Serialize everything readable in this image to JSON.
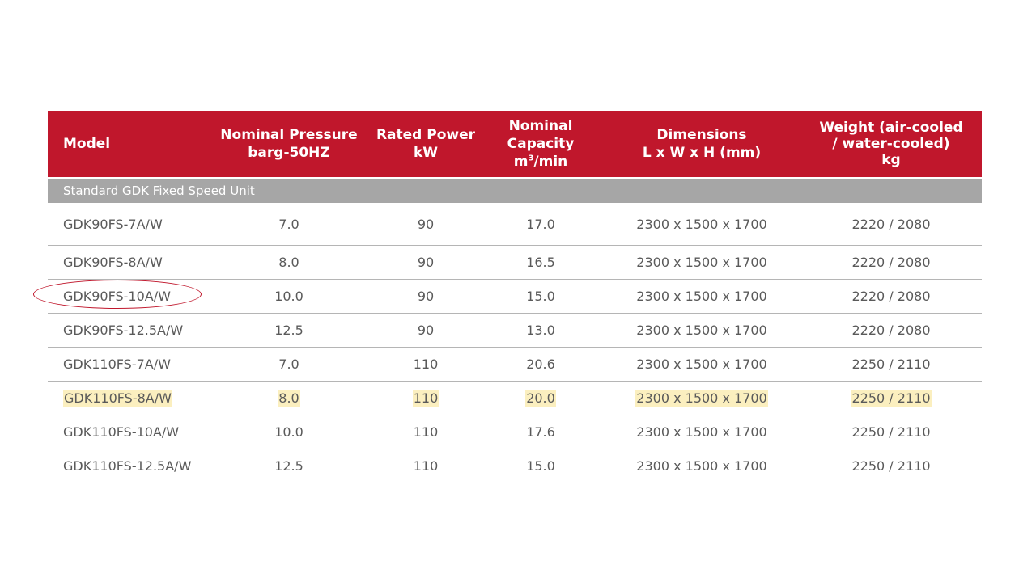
{
  "table": {
    "headers": {
      "model": [
        "Model"
      ],
      "pressure": [
        "Nominal Pressure",
        "barg-50HZ"
      ],
      "power": [
        "Rated Power",
        "kW"
      ],
      "capacity": [
        "Nominal Capacity",
        "m",
        "3",
        "/min"
      ],
      "dimensions": [
        "Dimensions",
        "L x W x H (mm)"
      ],
      "weight": [
        "Weight (air-cooled",
        "/ water-cooled)",
        "kg"
      ]
    },
    "section_label": "Standard GDK Fixed Speed Unit",
    "rows": [
      {
        "model": "GDK90FS-7A/W",
        "pressure": "7.0",
        "power": "90",
        "capacity": "17.0",
        "dimensions": "2300 x 1500 x 1700",
        "weight": "2220 / 2080"
      },
      {
        "model": "GDK90FS-8A/W",
        "pressure": "8.0",
        "power": "90",
        "capacity": "16.5",
        "dimensions": "2300 x 1500 x 1700",
        "weight": "2220 / 2080"
      },
      {
        "model": "GDK90FS-10A/W",
        "pressure": "10.0",
        "power": "90",
        "capacity": "15.0",
        "dimensions": "2300 x 1500 x 1700",
        "weight": "2220 / 2080"
      },
      {
        "model": "GDK90FS-12.5A/W",
        "pressure": "12.5",
        "power": "90",
        "capacity": "13.0",
        "dimensions": "2300 x 1500 x 1700",
        "weight": "2220 / 2080"
      },
      {
        "model": "GDK110FS-7A/W",
        "pressure": "7.0",
        "power": "110",
        "capacity": "20.6",
        "dimensions": "2300 x 1500 x 1700",
        "weight": "2250 / 2110"
      },
      {
        "model": "GDK110FS-8A/W",
        "pressure": "8.0",
        "power": "110",
        "capacity": "20.0",
        "dimensions": "2300 x 1500 x 1700",
        "weight": "2250 / 2110"
      },
      {
        "model": "GDK110FS-10A/W",
        "pressure": "10.0",
        "power": "110",
        "capacity": "17.6",
        "dimensions": "2300 x 1500 x 1700",
        "weight": "2250 / 2110"
      },
      {
        "model": "GDK110FS-12.5A/W",
        "pressure": "12.5",
        "power": "110",
        "capacity": "15.0",
        "dimensions": "2300 x 1500 x 1700",
        "weight": "2250 / 2110"
      }
    ],
    "highlighted_row": 5,
    "circled_row": 2
  },
  "colors": {
    "header_bg": "#c0172c",
    "section_bg": "#a6a6a6",
    "highlight": "#fbefbf",
    "circle": "#c0172c"
  }
}
